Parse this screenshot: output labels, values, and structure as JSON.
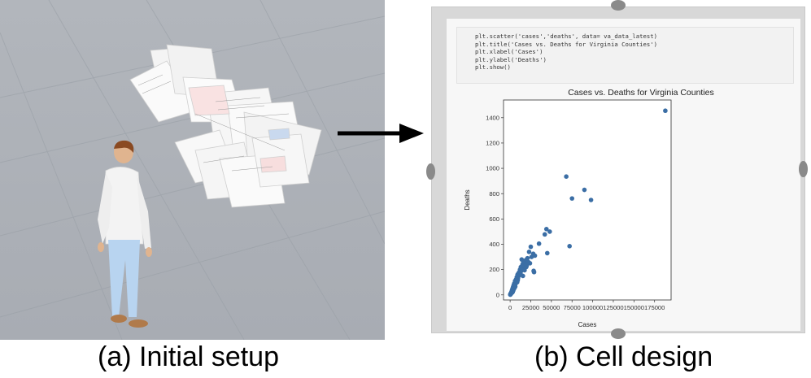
{
  "captions": {
    "a": "(a) Initial setup",
    "b": "(b) Cell design"
  },
  "code_lines": [
    "plt.scatter('cases','deaths', data= va_data_latest)",
    "plt.title('Cases vs. Deaths for Virginia Counties')",
    "plt.xlabel('Cases')",
    "plt.ylabel('Deaths')",
    "plt.show()"
  ],
  "chart_data": {
    "type": "scatter",
    "title": "Cases vs. Deaths for Virginia Counties",
    "xlabel": "Cases",
    "ylabel": "Deaths",
    "xlim": [
      -8000,
      195000
    ],
    "ylim": [
      -40,
      1540
    ],
    "x_ticks": [
      0,
      25000,
      50000,
      75000,
      100000,
      125000,
      150000,
      175000
    ],
    "y_ticks": [
      0,
      200,
      400,
      600,
      800,
      1000,
      1200,
      1400
    ],
    "color": "#3b6ea5",
    "points": [
      [
        188000,
        1455
      ],
      [
        68000,
        935
      ],
      [
        90000,
        830
      ],
      [
        98000,
        750
      ],
      [
        75000,
        762
      ],
      [
        72000,
        385
      ],
      [
        48000,
        500
      ],
      [
        44000,
        520
      ],
      [
        42000,
        478
      ],
      [
        35000,
        405
      ],
      [
        45000,
        330
      ],
      [
        28000,
        325
      ],
      [
        30000,
        310
      ],
      [
        25000,
        380
      ],
      [
        23000,
        340
      ],
      [
        26000,
        300
      ],
      [
        21000,
        290
      ],
      [
        19000,
        275
      ],
      [
        22000,
        260
      ],
      [
        18000,
        250
      ],
      [
        16000,
        260
      ],
      [
        15000,
        240
      ],
      [
        14000,
        280
      ],
      [
        13000,
        220
      ],
      [
        12000,
        200
      ],
      [
        17000,
        210
      ],
      [
        20000,
        230
      ],
      [
        24000,
        250
      ],
      [
        11000,
        180
      ],
      [
        10000,
        170
      ],
      [
        9000,
        160
      ],
      [
        8000,
        140
      ],
      [
        7000,
        120
      ],
      [
        6000,
        110
      ],
      [
        5000,
        90
      ],
      [
        4500,
        80
      ],
      [
        4000,
        70
      ],
      [
        3500,
        60
      ],
      [
        3000,
        50
      ],
      [
        2500,
        40
      ],
      [
        2000,
        30
      ],
      [
        1500,
        20
      ],
      [
        1000,
        15
      ],
      [
        800,
        10
      ],
      [
        600,
        8
      ],
      [
        400,
        5
      ],
      [
        300,
        3
      ],
      [
        200,
        2
      ],
      [
        7500,
        100
      ],
      [
        6500,
        85
      ],
      [
        5500,
        75
      ],
      [
        9500,
        130
      ],
      [
        10500,
        150
      ],
      [
        11500,
        160
      ],
      [
        12500,
        170
      ],
      [
        13500,
        190
      ],
      [
        14500,
        200
      ],
      [
        16500,
        230
      ],
      [
        29000,
        180
      ],
      [
        28500,
        190
      ],
      [
        3200,
        25
      ],
      [
        2800,
        20
      ],
      [
        4200,
        45
      ],
      [
        5200,
        55
      ],
      [
        6200,
        65
      ],
      [
        8500,
        100
      ],
      [
        9200,
        115
      ],
      [
        15500,
        150
      ],
      [
        17500,
        195
      ],
      [
        19500,
        220
      ],
      [
        1200,
        10
      ],
      [
        1800,
        18
      ],
      [
        2200,
        28
      ],
      [
        3800,
        35
      ],
      [
        4800,
        50
      ]
    ]
  }
}
